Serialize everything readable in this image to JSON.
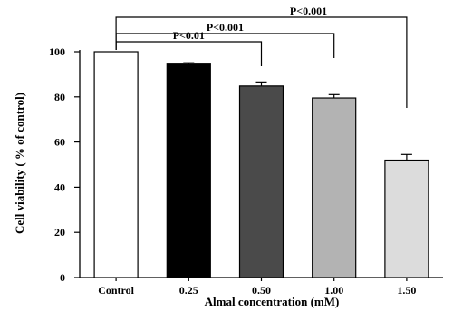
{
  "chart_data": {
    "type": "bar",
    "categories": [
      "Control",
      "0.25",
      "0.50",
      "1.00",
      "1.50"
    ],
    "values": [
      100,
      94.5,
      84.8,
      79.5,
      52
    ],
    "errors": [
      0,
      0.6,
      1.8,
      1.5,
      2.5
    ],
    "colors": [
      "#ffffff",
      "#000000",
      "#4a4a4a",
      "#b3b3b3",
      "#dcdcdc"
    ],
    "xlabel": "Almal concentration (mM)",
    "ylabel": "Cell viability ( % of control)",
    "ylim": [
      0,
      100
    ],
    "yticks": [
      0,
      20,
      40,
      60,
      80,
      100
    ],
    "comparisons": [
      {
        "from": 0,
        "to": 2,
        "label": "P<0.01"
      },
      {
        "from": 0,
        "to": 3,
        "label": "P<0.001"
      },
      {
        "from": 0,
        "to": 4,
        "label": "P<0.001"
      }
    ]
  }
}
